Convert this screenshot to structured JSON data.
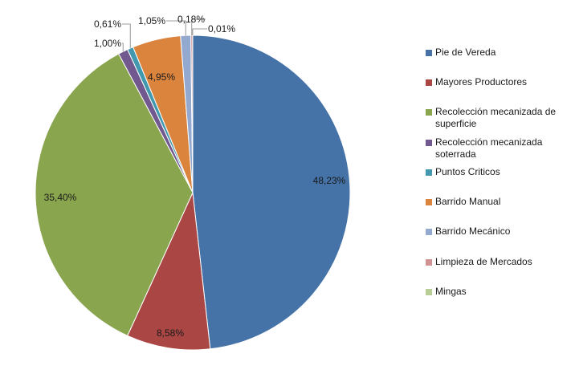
{
  "chart_data": {
    "type": "pie",
    "title": "",
    "slices": [
      {
        "label": "Pie de Vereda",
        "value": 48.23,
        "display": "48,23%",
        "color": "#4572a7"
      },
      {
        "label": "Mayores Productores",
        "value": 8.58,
        "display": "8,58%",
        "color": "#aa4643"
      },
      {
        "label": "Recolección mecanizada de superficie",
        "value": 35.4,
        "display": "35,40%",
        "color": "#89a54e"
      },
      {
        "label": "Recolección mecanizada soterrada",
        "value": 1.0,
        "display": "1,00%",
        "color": "#71588f"
      },
      {
        "label": "Puntos Criticos",
        "value": 0.61,
        "display": "0,61%",
        "color": "#4198af"
      },
      {
        "label": "Barrido Manual",
        "value": 4.95,
        "display": "4,95%",
        "color": "#db843d"
      },
      {
        "label": "Barrido Mecánico",
        "value": 1.05,
        "display": "1,05%",
        "color": "#93a9cf"
      },
      {
        "label": "Limpieza de Mercados",
        "value": 0.18,
        "display": "0,18%",
        "color": "#d19392"
      },
      {
        "label": "Mingas",
        "value": 0.01,
        "display": "0,01%",
        "color": "#b9cd96"
      }
    ],
    "legend_position": "right"
  }
}
